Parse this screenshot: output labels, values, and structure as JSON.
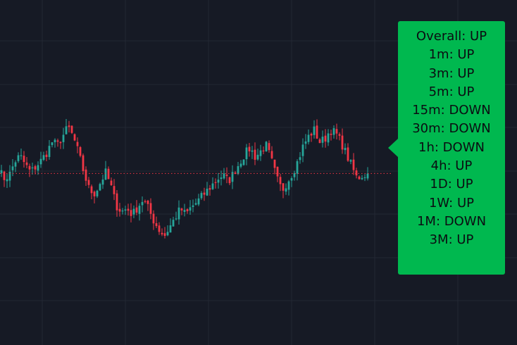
{
  "colors": {
    "background": "#161a25",
    "grid": "#232834",
    "bullish": "#26a69a",
    "bearish": "#f23645",
    "price_line": "#f23645",
    "panel": "#00b84f",
    "panel_text": "#0b0d12"
  },
  "trend_panel": {
    "lines": [
      "Overall: UP",
      "1m: UP",
      "3m: UP",
      "5m: UP",
      "15m: DOWN",
      "30m: DOWN",
      "1h: DOWN",
      "4h: UP",
      "1D: UP",
      "1W: UP",
      "1M: DOWN",
      "3M: UP"
    ]
  },
  "chart_data": {
    "type": "candlestick",
    "last_price": 41.2,
    "price_range": [
      0,
      100
    ],
    "close_path": [
      44,
      38,
      40,
      49,
      53,
      47,
      42,
      46,
      50,
      55,
      62,
      60,
      66,
      72,
      65,
      54,
      41,
      30,
      28,
      35,
      42,
      33,
      20,
      16,
      18,
      14,
      19,
      24,
      18,
      10,
      4,
      0,
      6,
      12,
      18,
      14,
      19,
      22,
      26,
      30,
      34,
      38,
      40,
      36,
      42,
      48,
      54,
      58,
      52,
      56,
      60,
      50,
      38,
      30,
      36,
      42,
      50,
      60,
      66,
      70,
      62,
      64,
      70,
      68,
      62,
      54,
      46,
      38,
      40,
      41
    ]
  }
}
